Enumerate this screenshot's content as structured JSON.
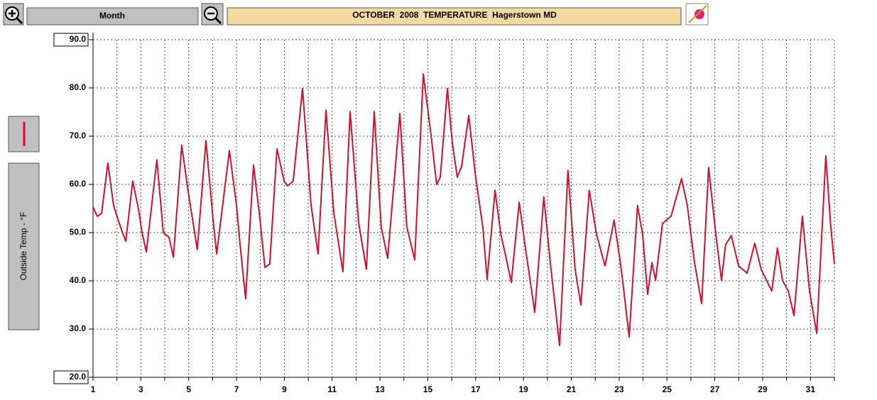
{
  "toolbar": {
    "range": "Month"
  },
  "chart_data": {
    "type": "line",
    "title": "OCTOBER  2008  TEMPERATURE  Hagerstown MD",
    "x": [
      1.0,
      1.18,
      1.36,
      1.62,
      1.86,
      2.16,
      2.37,
      2.66,
      2.9,
      3.05,
      3.23,
      3.67,
      3.94,
      4.18,
      4.36,
      4.71,
      4.98,
      5.36,
      5.72,
      6.02,
      6.17,
      6.7,
      7.0,
      7.15,
      7.38,
      7.71,
      7.95,
      8.19,
      8.39,
      8.69,
      8.99,
      9.14,
      9.37,
      9.76,
      10.12,
      10.41,
      10.74,
      11.07,
      11.45,
      11.75,
      12.11,
      12.43,
      12.76,
      13.05,
      13.32,
      13.83,
      14.12,
      14.45,
      14.81,
      15.13,
      15.37,
      15.52,
      15.82,
      16.02,
      16.23,
      16.41,
      16.71,
      17.0,
      17.3,
      17.48,
      17.81,
      18.05,
      18.25,
      18.49,
      18.82,
      19.08,
      19.47,
      19.85,
      20.12,
      20.51,
      20.86,
      21.16,
      21.4,
      21.75,
      22.05,
      22.41,
      22.79,
      23.09,
      23.42,
      23.77,
      23.98,
      24.19,
      24.37,
      24.52,
      24.81,
      25.17,
      25.61,
      25.85,
      26.15,
      26.45,
      26.74,
      27.04,
      27.28,
      27.45,
      27.69,
      27.99,
      28.35,
      28.67,
      28.94,
      29.38,
      29.62,
      29.83,
      30.07,
      30.31,
      30.66,
      30.96,
      31.26,
      31.64,
      31.85,
      32.0
    ],
    "series": [
      {
        "name": "Outside Temp - °F",
        "color": "#d0102c",
        "values": [
          55.3,
          53.4,
          54,
          64.4,
          55.6,
          51,
          48.2,
          60.7,
          54.9,
          50,
          46,
          65.1,
          50,
          49,
          44.9,
          68.1,
          58.5,
          46.5,
          69.1,
          52.6,
          45.6,
          67,
          55.6,
          47.5,
          36.3,
          64,
          54.1,
          42.8,
          43.5,
          67.4,
          60.7,
          59.7,
          60.7,
          79.9,
          55.6,
          45.6,
          75.4,
          54.1,
          41.9,
          75.1,
          51.9,
          42.4,
          75.1,
          51.2,
          44.7,
          74.7,
          51.2,
          44.4,
          82.9,
          70.3,
          60,
          61.5,
          79.9,
          68.8,
          61.5,
          63.7,
          74.3,
          61.5,
          51.2,
          40.3,
          58.8,
          49.7,
          45.3,
          39.7,
          56.3,
          46.8,
          33.5,
          57.4,
          43.8,
          26.6,
          62.9,
          42.4,
          35,
          58.8,
          49.7,
          43.1,
          52.6,
          42.4,
          28.4,
          55.6,
          49.7,
          37.2,
          43.8,
          40.1,
          51.9,
          53.4,
          61.2,
          55.6,
          43.8,
          35.3,
          63.5,
          49.7,
          40.1,
          47.5,
          49.4,
          43.1,
          41.6,
          47.8,
          42.4,
          37.9,
          46.8,
          40.1,
          37.9,
          32.8,
          53.4,
          37.9,
          29.1,
          65.9,
          51.2,
          43.5
        ]
      }
    ],
    "xlim": [
      1,
      32
    ],
    "xticks": [
      1,
      3,
      5,
      7,
      9,
      11,
      13,
      15,
      17,
      19,
      21,
      23,
      25,
      27,
      29,
      31
    ],
    "xminor_ticks": [
      2,
      4,
      6,
      8,
      10,
      12,
      14,
      16,
      18,
      20,
      22,
      24,
      26,
      28,
      30,
      32
    ],
    "ylim": [
      20,
      90
    ],
    "yticks": [
      {
        "value": 20,
        "label": "20.0"
      },
      {
        "value": 30,
        "label": "30.0"
      },
      {
        "value": 40,
        "label": "40.0"
      },
      {
        "value": 50,
        "label": "50.0"
      },
      {
        "value": 60,
        "label": "60.0"
      },
      {
        "value": 70,
        "label": "70.0"
      },
      {
        "value": 80,
        "label": "80.0"
      },
      {
        "value": 90,
        "label": "90.0"
      }
    ],
    "grid": true
  }
}
